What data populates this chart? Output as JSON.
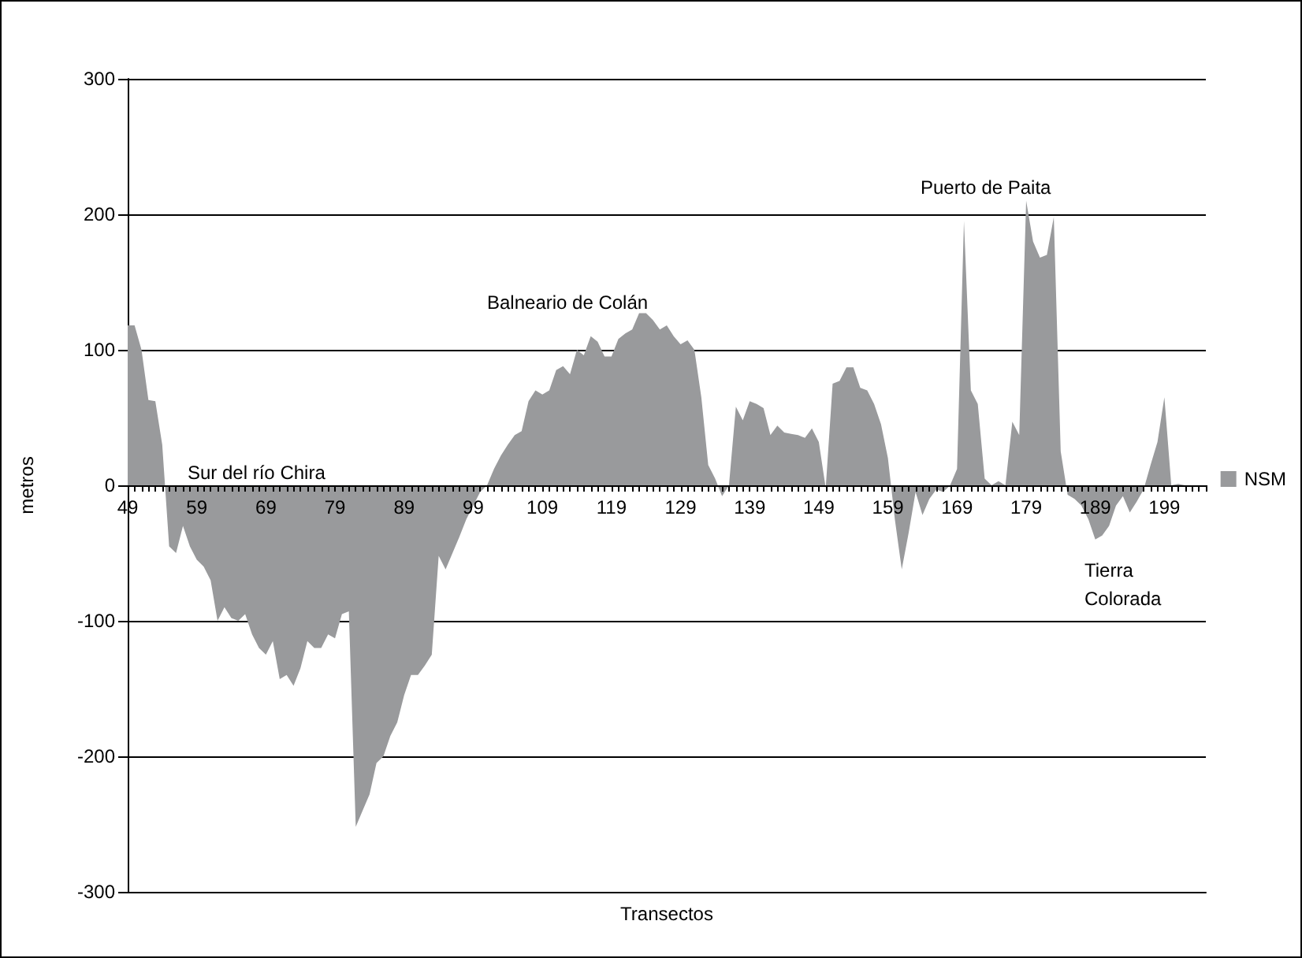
{
  "chart_data": {
    "type": "area",
    "xlabel": "Transectos",
    "ylabel": "metros",
    "categories": [
      "49",
      null,
      null,
      null,
      null,
      null,
      null,
      null,
      null,
      null,
      "59",
      null,
      null,
      null,
      null,
      null,
      null,
      null,
      null,
      null,
      "69",
      null,
      null,
      null,
      null,
      null,
      null,
      null,
      null,
      null,
      "79",
      null,
      null,
      null,
      null,
      null,
      null,
      null,
      null,
      null,
      "89",
      null,
      null,
      null,
      null,
      null,
      null,
      null,
      null,
      null,
      "99",
      null,
      null,
      null,
      null,
      null,
      null,
      null,
      null,
      null,
      "109",
      null,
      null,
      null,
      null,
      null,
      null,
      null,
      null,
      null,
      "119",
      null,
      null,
      null,
      null,
      null,
      null,
      null,
      null,
      null,
      "129",
      null,
      null,
      null,
      null,
      null,
      null,
      null,
      null,
      null,
      "139",
      null,
      null,
      null,
      null,
      null,
      null,
      null,
      null,
      null,
      "149",
      null,
      null,
      null,
      null,
      null,
      null,
      null,
      null,
      null,
      "159",
      null,
      null,
      null,
      null,
      null,
      null,
      null,
      null,
      null,
      "169",
      null,
      null,
      null,
      null,
      null,
      null,
      null,
      null,
      null,
      "179",
      null,
      null,
      null,
      null,
      null,
      null,
      null,
      null,
      null,
      "189",
      null,
      null,
      null,
      null,
      null,
      null,
      null,
      null,
      null,
      "199",
      null,
      null,
      null,
      null,
      null,
      null
    ],
    "series": [
      {
        "name": "NSM",
        "color": "#999a9c",
        "values": [
          118,
          118,
          100,
          63,
          62,
          30,
          -45,
          -50,
          -30,
          -45,
          -55,
          -60,
          -70,
          -100,
          -90,
          -98,
          -100,
          -95,
          -110,
          -120,
          -125,
          -115,
          -143,
          -140,
          -148,
          -135,
          -115,
          -120,
          -120,
          -110,
          -113,
          -95,
          -93,
          -252,
          -240,
          -228,
          -205,
          -200,
          -185,
          -175,
          -155,
          -140,
          -140,
          -133,
          -125,
          -52,
          -62,
          -50,
          -38,
          -25,
          -15,
          -5,
          0,
          12,
          22,
          30,
          37,
          40,
          62,
          70,
          67,
          70,
          85,
          88,
          82,
          100,
          96,
          110,
          106,
          95,
          95,
          108,
          112,
          115,
          127,
          127,
          122,
          115,
          118,
          110,
          104,
          107,
          100,
          65,
          15,
          5,
          -8,
          0,
          58,
          48,
          62,
          60,
          57,
          37,
          44,
          39,
          38,
          37,
          35,
          42,
          32,
          -2,
          75,
          77,
          87,
          87,
          72,
          70,
          60,
          45,
          20,
          -25,
          -62,
          -35,
          -5,
          -22,
          -10,
          -3,
          -5,
          0,
          12,
          195,
          70,
          60,
          5,
          0,
          3,
          0,
          47,
          37,
          210,
          180,
          168,
          170,
          198,
          25,
          -7,
          -10,
          -15,
          -25,
          -40,
          -37,
          -30,
          -15,
          -8,
          -20,
          -12,
          -3,
          15,
          32,
          65,
          0,
          1,
          0,
          -1,
          0,
          0
        ]
      }
    ],
    "ylim": [
      -300,
      300
    ],
    "yticks": [
      -300,
      -200,
      -100,
      0,
      100,
      200,
      300
    ],
    "grid": "y",
    "legend": "right",
    "annotations": [
      "Sur del río Chira",
      "Balneario de Colán",
      "Puerto de Paita",
      "Tierra\nColorada"
    ]
  }
}
